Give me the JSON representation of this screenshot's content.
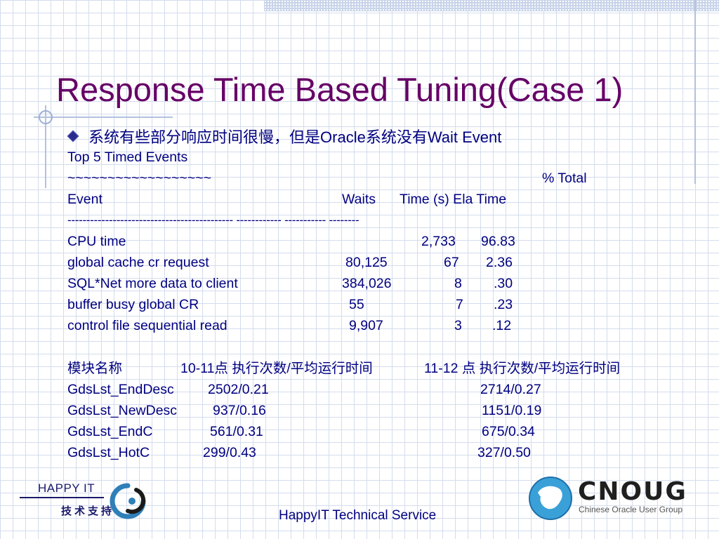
{
  "slide": {
    "title": "Response Time Based Tuning(Case 1)",
    "bullet_cn": "系统有些部分响应时间很慢，但是",
    "bullet_oracle": "Oracle",
    "bullet_cn2": "系统没有",
    "bullet_end": "Wait Event"
  },
  "report": {
    "heading": "Top 5 Timed Events",
    "tilde": "~~~~~~~~~~~~~~~~~~",
    "pct_total": "% Total",
    "col_event": "Event",
    "col_waits": "Waits",
    "col_time": "Time (s) Ela Time",
    "separator": "-------------------------------------------- ------------ ----------- --------",
    "rows": [
      {
        "event": "CPU time",
        "waits": "",
        "time": "2,733",
        "ela": "96.83"
      },
      {
        "event": "global cache cr request",
        "waits": "80,125",
        "time": "67",
        "ela": "2.36"
      },
      {
        "event": "SQL*Net more data to client",
        "waits": "384,026",
        "time": "8",
        "ela": ".30"
      },
      {
        "event": "buffer busy global CR",
        "waits": "55",
        "time": "7",
        "ela": ".23"
      },
      {
        "event": "control file sequential read",
        "waits": "9,907",
        "time": "3",
        "ela": ".12"
      }
    ]
  },
  "modules": {
    "h_name": "模块名称",
    "h_1011": "10-11点 执行次数/平均运行时间",
    "h_1112": "11-12 点  执行次数/平均运行时间",
    "rows": [
      {
        "name": "GdsLst_EndDesc",
        "a": "2502/0.21",
        "b": "2714/0.27"
      },
      {
        "name": "GdsLst_NewDesc",
        "a": "937/0.16",
        "b": "1151/0.19"
      },
      {
        "name": "GdsLst_EndC",
        "a": "561/0.31",
        "b": "675/0.34"
      },
      {
        "name": "GdsLst_HotC",
        "a": "299/0.43",
        "b": "327/0.50"
      }
    ]
  },
  "footer": {
    "happy_logo": "HAPPY IT",
    "happy_cn": "技术支持",
    "center": "HappyIT Technical Service",
    "cnoug_logo": "CNOUG",
    "cnoug_sub": "Chinese Oracle User Group"
  }
}
